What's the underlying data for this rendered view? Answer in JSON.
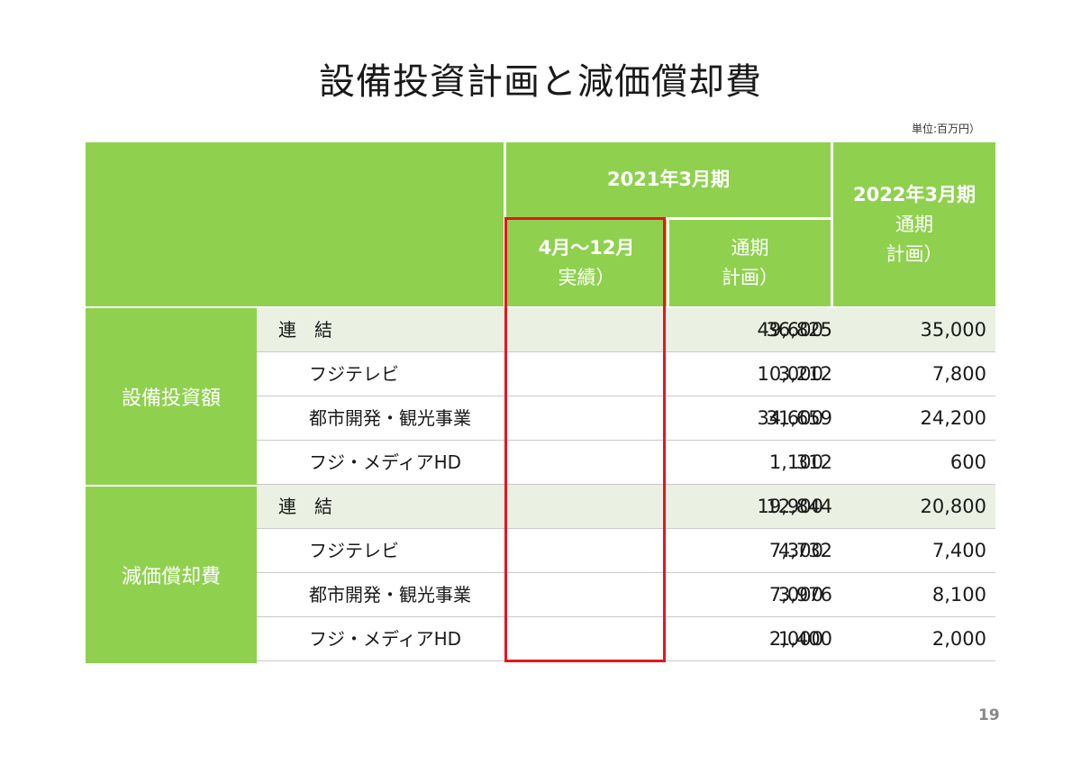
{
  "title": "設備投資計画と減価償却費",
  "unit": "単位:百万円）",
  "page_number": "19",
  "header": {
    "period_2021": "2021年3月期",
    "col_actual_line1": "4月〜12月",
    "col_actual_line2": "実績）",
    "col_plan_line1": "通期",
    "col_plan_line2": "計画）",
    "period_2022": "2022年3月期",
    "col_2022_line1": "通期",
    "col_2022_line2": "計画）"
  },
  "groups": [
    {
      "name": "設備投資額",
      "rows": [
        {
          "label": "連　結",
          "actual": "36,825",
          "plan": "49,600",
          "plan2022": "35,000"
        },
        {
          "label": "フジテレビ",
          "actual": "3,212",
          "plan": "10,000",
          "plan2022": "7,800"
        },
        {
          "label": "都市開発・観光事業",
          "actual": "31,659",
          "plan": "34,600",
          "plan2022": "24,200"
        },
        {
          "label": "フジ・メディアHD",
          "actual": "312",
          "plan": "1,100",
          "plan2022": "600"
        }
      ]
    },
    {
      "name": "減価償却費",
      "rows": [
        {
          "label": "連　結",
          "actual": "12,844",
          "plan": "19,900",
          "plan2022": "20,800"
        },
        {
          "label": "フジテレビ",
          "actual": "4,732",
          "plan": "7,300",
          "plan2022": "7,400"
        },
        {
          "label": "都市開発・観光事業",
          "actual": "3,976",
          "plan": "7,000",
          "plan2022": "8,100"
        },
        {
          "label": "フジ・メディアHD",
          "actual": "1,400",
          "plan": "2,000",
          "plan2022": "2,000"
        }
      ]
    }
  ],
  "colors": {
    "header_green": "#8fd14f",
    "row_shade": "#eaf0e2",
    "highlight_red": "#e8141d"
  }
}
